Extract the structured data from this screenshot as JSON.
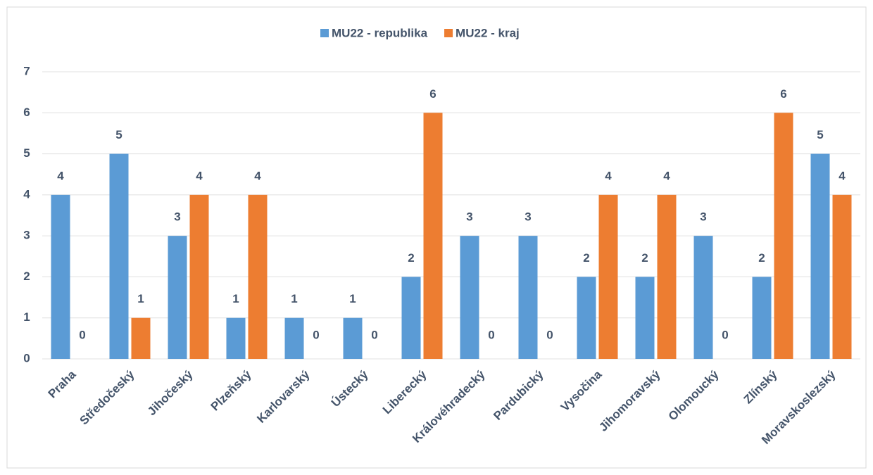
{
  "chart_data": {
    "type": "bar",
    "categories": [
      "Praha",
      "Středočeský",
      "Jihočeský",
      "Plzeňský",
      "Karlovarský",
      "Ústecký",
      "Liberecký",
      "Královéhradecký",
      "Pardubický",
      "Vysočina",
      "Jihomoravský",
      "Olomoucký",
      "Zlínský",
      "Moravskoslezský"
    ],
    "series": [
      {
        "name": "MU22 - republika",
        "color": "#5b9bd5",
        "values": [
          4,
          5,
          3,
          1,
          1,
          1,
          2,
          3,
          3,
          2,
          2,
          3,
          2,
          5
        ]
      },
      {
        "name": "MU22 - kraj",
        "color": "#ed7d31",
        "values": [
          0,
          1,
          4,
          4,
          0,
          0,
          6,
          0,
          0,
          4,
          4,
          0,
          6,
          4
        ]
      }
    ],
    "ylim": [
      0,
      7
    ],
    "yticks": [
      0,
      1,
      2,
      3,
      4,
      5,
      6,
      7
    ],
    "grid": true,
    "legend": "top"
  }
}
